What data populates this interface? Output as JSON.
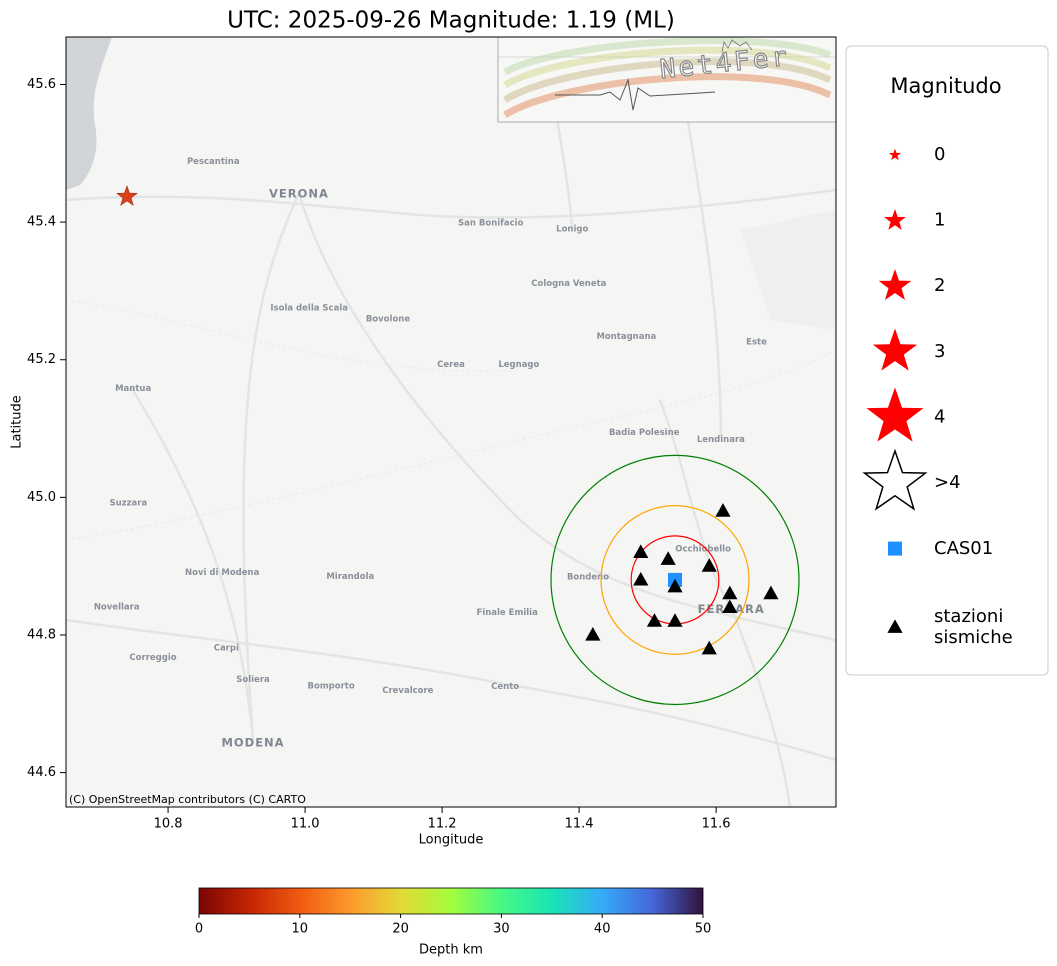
{
  "chart_data": {
    "type": "scatter",
    "title": "UTC: 2025-09-26 Magnitude: 1.19 (ML)",
    "xlabel": "Longitude",
    "ylabel": "Latitude",
    "xlim": [
      10.651,
      11.775
    ],
    "ylim": [
      44.55,
      45.669
    ],
    "xticks": [
      10.8,
      {
        "value": 11,
        "label": "11.0"
      },
      11.2,
      11.4,
      11.6
    ],
    "yticks": [
      44.6,
      44.8,
      {
        "value": 45,
        "label": "45.0"
      },
      45.2,
      45.4,
      45.6
    ],
    "event": {
      "x": 10.74,
      "y": 45.437,
      "magnitude": 1.19,
      "color": "#d9401a"
    },
    "series": [
      {
        "name": "CAS01",
        "color": "#1e90ff",
        "marker": "square",
        "x": [
          11.54
        ],
        "values": [
          44.88
        ]
      },
      {
        "name": "stazioni sismiche",
        "color": "#000000",
        "marker": "triangle",
        "x": [
          11.61,
          11.49,
          11.53,
          11.59,
          11.49,
          11.54,
          11.62,
          11.68,
          11.62,
          11.51,
          11.54,
          11.42,
          11.59
        ],
        "values": [
          44.98,
          44.92,
          44.91,
          44.9,
          44.88,
          44.87,
          44.86,
          44.86,
          44.84,
          44.82,
          44.82,
          44.8,
          44.78
        ]
      }
    ],
    "circles": [
      {
        "radius": 0.064,
        "color": "#ff0000"
      },
      {
        "radius": 0.108,
        "color": "#ffa500"
      },
      {
        "radius": 0.181,
        "color": "#008000"
      }
    ],
    "legend_title": "Magnitudo",
    "magnitude_legend": [
      0,
      1,
      2,
      3,
      4
    ],
    "magnitude_legend_open": ">4",
    "legend_star_color": "#ff0000",
    "clim": [
      0,
      50
    ],
    "cticks": [
      0,
      10,
      20,
      30,
      40,
      50
    ],
    "clabel": "Depth km",
    "colormap": [
      "#7a0403",
      "#c42503",
      "#ef5a11",
      "#fe992c",
      "#e3d937",
      "#a4fc3c",
      "#46f884",
      "#1ae4b6",
      "#35abf8",
      "#4666d8",
      "#30123b"
    ]
  },
  "logo": "Net4Fer",
  "attribution": "(C) OpenStreetMap contributors (C) CARTO",
  "places": [
    {
      "name": "VERONA",
      "lon": 10.991,
      "lat": 45.441,
      "big": true
    },
    {
      "name": "MODENA",
      "lon": 10.924,
      "lat": 44.643,
      "big": true
    },
    {
      "name": "FERRARA",
      "lon": 11.622,
      "lat": 44.837,
      "big": true
    },
    {
      "name": "Mantua",
      "lon": 10.749,
      "lat": 45.158
    },
    {
      "name": "Legnago",
      "lon": 11.312,
      "lat": 45.193
    },
    {
      "name": "Cerea",
      "lon": 11.213,
      "lat": 45.193
    },
    {
      "name": "Bovolone",
      "lon": 11.121,
      "lat": 45.259
    },
    {
      "name": "Isola della Scala",
      "lon": 11.006,
      "lat": 45.275
    },
    {
      "name": "Badia Polesine",
      "lon": 11.495,
      "lat": 45.094
    },
    {
      "name": "Lendinara",
      "lon": 11.607,
      "lat": 45.084
    },
    {
      "name": "Montagnana",
      "lon": 11.469,
      "lat": 45.234
    },
    {
      "name": "Cologna Veneta",
      "lon": 11.385,
      "lat": 45.311
    },
    {
      "name": "San Bonifacio",
      "lon": 11.271,
      "lat": 45.399
    },
    {
      "name": "Lonigo",
      "lon": 11.39,
      "lat": 45.39
    },
    {
      "name": "Mirandola",
      "lon": 11.066,
      "lat": 44.885
    },
    {
      "name": "Finale Emilia",
      "lon": 11.295,
      "lat": 44.833
    },
    {
      "name": "Bondeno",
      "lon": 11.413,
      "lat": 44.884
    },
    {
      "name": "Cento",
      "lon": 11.292,
      "lat": 44.725
    },
    {
      "name": "Carpi",
      "lon": 10.885,
      "lat": 44.781
    },
    {
      "name": "Novellara",
      "lon": 10.725,
      "lat": 44.841
    },
    {
      "name": "Correggio",
      "lon": 10.778,
      "lat": 44.767
    },
    {
      "name": "Suzzara",
      "lon": 10.742,
      "lat": 44.992
    },
    {
      "name": "Novi di Modena",
      "lon": 10.879,
      "lat": 44.891
    },
    {
      "name": "Bomporto",
      "lon": 11.038,
      "lat": 44.726
    },
    {
      "name": "Crevalcore",
      "lon": 11.15,
      "lat": 44.719
    },
    {
      "name": "Soliera",
      "lon": 10.924,
      "lat": 44.735
    },
    {
      "name": "Pescantina",
      "lon": 10.866,
      "lat": 45.488
    },
    {
      "name": "Occhiobello",
      "lon": 11.581,
      "lat": 44.925
    },
    {
      "name": "Este",
      "lon": 11.659,
      "lat": 45.226
    }
  ]
}
